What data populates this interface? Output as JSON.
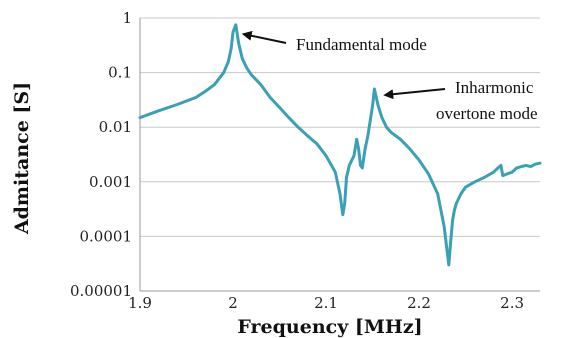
{
  "chart_data": {
    "type": "line",
    "xlabel": "Frequency [MHz]",
    "ylabel": "Admitance [S]",
    "xlim": [
      1.9,
      2.33
    ],
    "ylim": [
      1e-05,
      1
    ],
    "y_scale": "log",
    "x_ticks": [
      1.9,
      2.0,
      2.1,
      2.2,
      2.3
    ],
    "x_tick_labels": [
      "1.9",
      "2",
      "2.1",
      "2.2",
      "2.3"
    ],
    "y_ticks": [
      1,
      0.1,
      0.01,
      0.001,
      0.0001,
      1e-05
    ],
    "y_tick_labels": [
      "1",
      "0.1",
      "0.01",
      "0.001",
      "0.0001",
      "0.00001"
    ],
    "grid": "horizontal",
    "line_color": "#3aa0b4",
    "series": [
      {
        "x": [
          1.9,
          1.92,
          1.94,
          1.96,
          1.97,
          1.98,
          1.99,
          1.995,
          1.998,
          2.0,
          2.003,
          2.006,
          2.01,
          2.015,
          2.02,
          2.03,
          2.04,
          2.05,
          2.06,
          2.07,
          2.08,
          2.09,
          2.1,
          2.11,
          2.115,
          2.118,
          2.12,
          2.122,
          2.125,
          2.13,
          2.133,
          2.135,
          2.137,
          2.139,
          2.142,
          2.145,
          2.148,
          2.15,
          2.152,
          2.154,
          2.156,
          2.16,
          2.165,
          2.17,
          2.18,
          2.19,
          2.2,
          2.21,
          2.22,
          2.227,
          2.232,
          2.234,
          2.236,
          2.238,
          2.24,
          2.245,
          2.25,
          2.26,
          2.27,
          2.28,
          2.285,
          2.288,
          2.29,
          2.295,
          2.3,
          2.305,
          2.31,
          2.315,
          2.32,
          2.325,
          2.33
        ],
        "y": [
          0.015,
          0.02,
          0.026,
          0.035,
          0.045,
          0.06,
          0.1,
          0.16,
          0.28,
          0.55,
          0.75,
          0.35,
          0.18,
          0.12,
          0.09,
          0.06,
          0.035,
          0.023,
          0.015,
          0.01,
          0.007,
          0.005,
          0.003,
          0.0015,
          0.0006,
          0.00025,
          0.0004,
          0.0012,
          0.002,
          0.003,
          0.006,
          0.004,
          0.002,
          0.0018,
          0.004,
          0.007,
          0.015,
          0.025,
          0.05,
          0.035,
          0.025,
          0.015,
          0.01,
          0.008,
          0.006,
          0.004,
          0.0025,
          0.0014,
          0.0006,
          0.00015,
          3e-05,
          8e-05,
          0.0002,
          0.0003,
          0.0004,
          0.0006,
          0.0008,
          0.001,
          0.0012,
          0.0015,
          0.0018,
          0.002,
          0.0013,
          0.0014,
          0.0015,
          0.0018,
          0.0019,
          0.002,
          0.0019,
          0.0021,
          0.0022
        ]
      }
    ],
    "annotations": [
      {
        "text": "Fundamental mode",
        "x": 2.005,
        "y": 0.6
      },
      {
        "text": "Inharmonic",
        "x": 2.155,
        "y": 0.05
      },
      {
        "text": "overtone mode",
        "x": 2.155,
        "y": 0.05
      }
    ]
  }
}
